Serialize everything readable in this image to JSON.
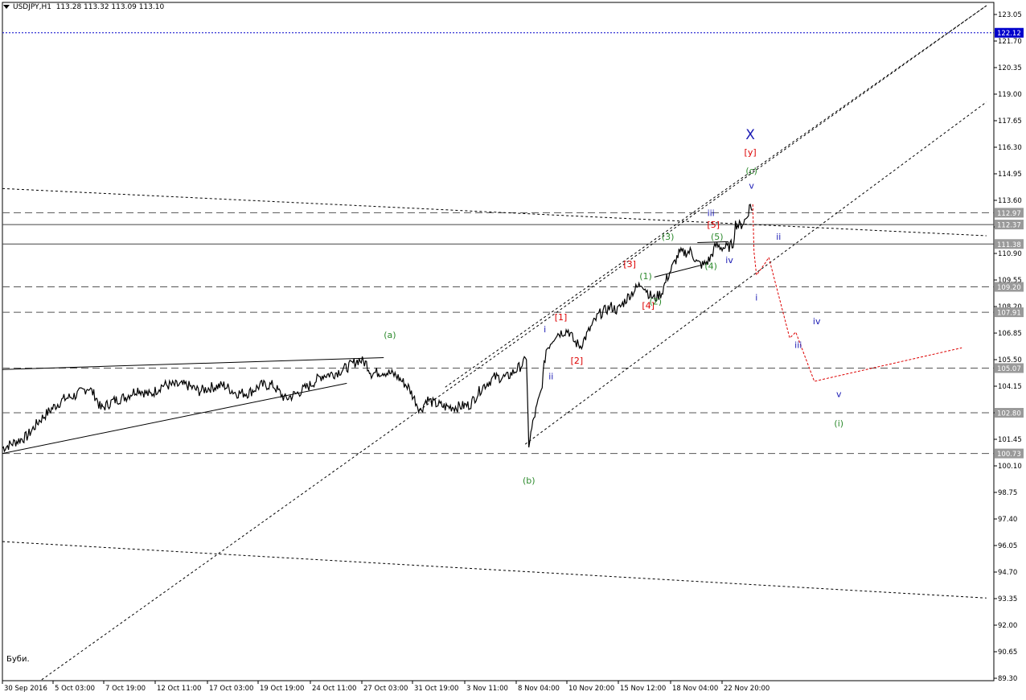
{
  "header": {
    "symbol": "USDJPY,H1",
    "ohlc": "113.28 113.32 113.09 113.10"
  },
  "note": "Буби.",
  "colors": {
    "price_line": "#000000",
    "grid_dash": "#000000",
    "blue_level": "#0000cc",
    "blue_label_bg": "#0000cc",
    "green_wave": "#2e8b2e",
    "red_wave": "#dd0000",
    "blue_wave": "#1a1ab4",
    "projection": "#dd0000"
  },
  "chart_data": {
    "type": "line",
    "title": "",
    "xlabel": "",
    "ylabel": "",
    "ylim": [
      89.3,
      123.05
    ],
    "y_ticks": [
      "123.05",
      "121.70",
      "120.35",
      "119.00",
      "117.65",
      "116.30",
      "114.95",
      "113.60",
      "112.25",
      "110.90",
      "109.55",
      "108.20",
      "106.85",
      "105.50",
      "104.15",
      "102.80",
      "101.45",
      "100.10",
      "98.75",
      "97.40",
      "96.05",
      "94.70",
      "93.35",
      "92.00",
      "90.65",
      "89.30"
    ],
    "x_ticks": [
      "30 Sep 2016",
      "5 Oct 03:00",
      "7 Oct 19:00",
      "12 Oct 11:00",
      "17 Oct 03:00",
      "19 Oct 19:00",
      "24 Oct 11:00",
      "27 Oct 03:00",
      "31 Oct 19:00",
      "3 Nov 11:00",
      "8 Nov 04:00",
      "10 Nov 20:00",
      "15 Nov 12:00",
      "18 Nov 04:00",
      "22 Nov 20:00"
    ],
    "price_labels": [
      {
        "text": "122.12",
        "value": 122.12,
        "style": "blue"
      },
      {
        "text": "112.97",
        "value": 112.97,
        "style": "gray"
      },
      {
        "text": "112.37",
        "value": 112.37,
        "style": "gray"
      },
      {
        "text": "111.38",
        "value": 111.38,
        "style": "gray"
      },
      {
        "text": "109.20",
        "value": 109.2,
        "style": "gray"
      },
      {
        "text": "107.91",
        "value": 107.91,
        "style": "gray"
      },
      {
        "text": "105.07",
        "value": 105.07,
        "style": "gray"
      },
      {
        "text": "102.80",
        "value": 102.8,
        "style": "gray"
      },
      {
        "text": "100.73",
        "value": 100.73,
        "style": "gray"
      }
    ],
    "horizontal_levels": [
      {
        "value": 122.12,
        "style": "blue-dotted"
      },
      {
        "value": 112.97,
        "style": "dashed"
      },
      {
        "value": 112.37,
        "style": "solid"
      },
      {
        "value": 111.38,
        "style": "solid"
      },
      {
        "value": 109.2,
        "style": "dashed"
      },
      {
        "value": 107.91,
        "style": "dashed"
      },
      {
        "value": 105.07,
        "style": "dashed"
      },
      {
        "value": 102.8,
        "style": "dashed"
      },
      {
        "value": 100.73,
        "style": "dashed"
      }
    ],
    "series": [
      {
        "color": "#000000",
        "points": [
          [
            0.0,
            101.0
          ],
          [
            1.0,
            101.3
          ],
          [
            2.0,
            101.6
          ],
          [
            3.0,
            102.4
          ],
          [
            4.0,
            103.0
          ],
          [
            5.0,
            103.5
          ],
          [
            6.0,
            103.7
          ],
          [
            7.0,
            104.1
          ],
          [
            7.6,
            103.6
          ],
          [
            8.0,
            103.0
          ],
          [
            9.0,
            103.4
          ],
          [
            10.0,
            103.6
          ],
          [
            11.0,
            104.0
          ],
          [
            12.0,
            103.7
          ],
          [
            13.0,
            104.2
          ],
          [
            14.0,
            104.2
          ],
          [
            15.0,
            104.2
          ],
          [
            16.0,
            103.9
          ],
          [
            17.0,
            104.1
          ],
          [
            18.0,
            104.2
          ],
          [
            19.0,
            103.8
          ],
          [
            20.0,
            103.8
          ],
          [
            21.0,
            104.2
          ],
          [
            22.0,
            104.2
          ],
          [
            23.0,
            103.5
          ],
          [
            24.0,
            103.8
          ],
          [
            25.0,
            104.2
          ],
          [
            26.0,
            104.7
          ],
          [
            27.0,
            104.8
          ],
          [
            28.0,
            105.1
          ],
          [
            29.0,
            105.5
          ],
          [
            29.6,
            105.3
          ],
          [
            30.0,
            104.8
          ],
          [
            31.0,
            104.9
          ],
          [
            32.0,
            104.7
          ],
          [
            33.0,
            104.1
          ],
          [
            33.5,
            103.5
          ],
          [
            34.0,
            102.9
          ],
          [
            34.5,
            103.5
          ],
          [
            35.0,
            103.3
          ],
          [
            36.0,
            103.1
          ],
          [
            37.0,
            103.1
          ],
          [
            38.0,
            103.2
          ],
          [
            39.0,
            104.1
          ],
          [
            40.0,
            104.6
          ],
          [
            41.0,
            104.6
          ],
          [
            42.0,
            105.1
          ],
          [
            42.6,
            105.5
          ],
          [
            42.8,
            101.2
          ],
          [
            43.2,
            102.5
          ],
          [
            43.8,
            103.9
          ],
          [
            44.2,
            106.0
          ],
          [
            45.0,
            106.8
          ],
          [
            46.0,
            107.0
          ],
          [
            46.5,
            106.4
          ],
          [
            47.0,
            106.2
          ],
          [
            48.0,
            107.3
          ],
          [
            48.5,
            107.8
          ],
          [
            49.5,
            108.2
          ],
          [
            50.0,
            108.0
          ],
          [
            51.0,
            108.8
          ],
          [
            52.0,
            109.4
          ],
          [
            52.6,
            108.8
          ],
          [
            53.0,
            108.6
          ],
          [
            53.6,
            108.9
          ],
          [
            54.0,
            109.6
          ],
          [
            55.0,
            110.9
          ],
          [
            56.0,
            111.0
          ],
          [
            56.5,
            110.4
          ],
          [
            57.0,
            110.3
          ],
          [
            57.5,
            110.6
          ],
          [
            58.0,
            111.3
          ],
          [
            58.6,
            111.2
          ],
          [
            59.0,
            111.2
          ],
          [
            59.4,
            111.4
          ],
          [
            59.6,
            112.4
          ],
          [
            60.0,
            112.3
          ],
          [
            60.5,
            112.7
          ],
          [
            60.8,
            113.4
          ],
          [
            61.0,
            113.1
          ]
        ]
      }
    ],
    "projection": {
      "color": "#dd0000",
      "points": [
        [
          61.0,
          113.4
        ],
        [
          61.1,
          111.0
        ],
        [
          61.3,
          109.8
        ],
        [
          62.0,
          110.4
        ],
        [
          62.3,
          110.7
        ],
        [
          64.0,
          106.6
        ],
        [
          64.5,
          106.9
        ],
        [
          66.0,
          104.4
        ],
        [
          78.0,
          106.1
        ]
      ]
    },
    "trendlines": [
      {
        "x1": 0.0,
        "y1": 100.73,
        "x2": 28.0,
        "y2": 104.3,
        "style": "solid"
      },
      {
        "x1": 0.0,
        "y1": 105.0,
        "x2": 31.0,
        "y2": 105.6,
        "style": "solid"
      },
      {
        "x1": 53.0,
        "y1": 109.7,
        "x2": 56.8,
        "y2": 110.3,
        "style": "solid"
      },
      {
        "x1": 56.5,
        "y1": 111.45,
        "x2": 59.0,
        "y2": 111.5,
        "style": "solid"
      },
      {
        "x1": 0.0,
        "y1": 114.2,
        "x2": 80.0,
        "y2": 111.8,
        "style": "dotted"
      },
      {
        "x1": 0.0,
        "y1": 96.25,
        "x2": 80.0,
        "y2": 93.38,
        "style": "dotted"
      },
      {
        "x1": 0.0,
        "y1": 87.8,
        "x2": 80.0,
        "y2": 123.5,
        "style": "dotted"
      },
      {
        "x1": 36.0,
        "y1": 104.1,
        "x2": 80.0,
        "y2": 123.5,
        "style": "dotted"
      },
      {
        "x1": 42.5,
        "y1": 101.2,
        "x2": 80.0,
        "y2": 118.6,
        "style": "dotted"
      }
    ],
    "annotations": [
      {
        "text": "X",
        "x": 60.8,
        "y": 116.7,
        "color": "blue",
        "size": "big"
      },
      {
        "text": "[y]",
        "x": 60.8,
        "y": 115.9,
        "color": "red"
      },
      {
        "text": "(c)",
        "x": 60.9,
        "y": 114.95,
        "color": "green"
      },
      {
        "text": "v",
        "x": 60.9,
        "y": 114.2,
        "color": "blue"
      },
      {
        "text": "(a)",
        "x": 31.5,
        "y": 106.6,
        "color": "green"
      },
      {
        "text": "(b)",
        "x": 42.8,
        "y": 99.2,
        "color": "green"
      },
      {
        "text": "i",
        "x": 44.1,
        "y": 106.9,
        "color": "blue"
      },
      {
        "text": "ii",
        "x": 44.6,
        "y": 104.5,
        "color": "blue"
      },
      {
        "text": "[1]",
        "x": 45.4,
        "y": 107.5,
        "color": "red"
      },
      {
        "text": "[2]",
        "x": 46.7,
        "y": 105.3,
        "color": "red"
      },
      {
        "text": "[3]",
        "x": 51.0,
        "y": 110.2,
        "color": "red"
      },
      {
        "text": "[4]",
        "x": 52.5,
        "y": 108.1,
        "color": "red"
      },
      {
        "text": "(1)",
        "x": 52.3,
        "y": 109.6,
        "color": "green"
      },
      {
        "text": "(2)",
        "x": 53.1,
        "y": 108.3,
        "color": "green"
      },
      {
        "text": "(3)",
        "x": 54.1,
        "y": 111.6,
        "color": "green"
      },
      {
        "text": "(4)",
        "x": 57.6,
        "y": 110.1,
        "color": "green"
      },
      {
        "text": "(5)",
        "x": 58.1,
        "y": 111.6,
        "color": "green"
      },
      {
        "text": "[5]",
        "x": 57.8,
        "y": 112.2,
        "color": "red"
      },
      {
        "text": "iii",
        "x": 57.6,
        "y": 112.8,
        "color": "blue"
      },
      {
        "text": "iv",
        "x": 59.1,
        "y": 110.4,
        "color": "blue"
      },
      {
        "text": "i",
        "x": 61.3,
        "y": 108.5,
        "color": "blue"
      },
      {
        "text": "ii",
        "x": 63.1,
        "y": 111.6,
        "color": "blue"
      },
      {
        "text": "iii",
        "x": 64.7,
        "y": 106.1,
        "color": "blue"
      },
      {
        "text": "iv",
        "x": 66.2,
        "y": 107.3,
        "color": "blue"
      },
      {
        "text": "v",
        "x": 68.0,
        "y": 103.6,
        "color": "blue"
      },
      {
        "text": "(i)",
        "x": 68.0,
        "y": 102.1,
        "color": "green"
      }
    ],
    "x_range": [
      0,
      80.6
    ],
    "grid": false,
    "legend": "none"
  }
}
